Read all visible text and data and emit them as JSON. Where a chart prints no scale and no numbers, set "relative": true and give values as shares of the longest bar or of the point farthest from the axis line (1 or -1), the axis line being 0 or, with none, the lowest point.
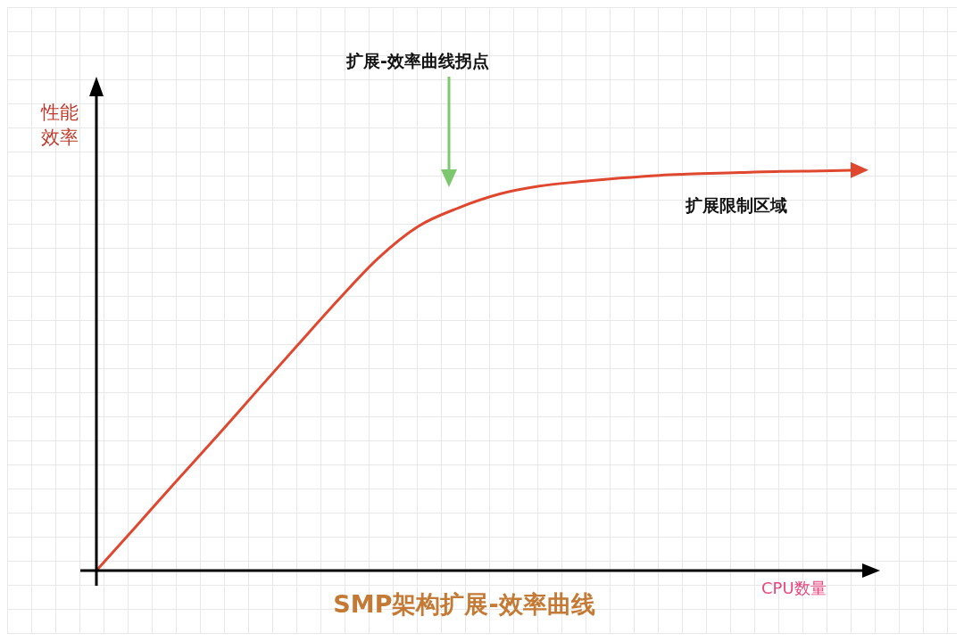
{
  "chart_data": {
    "type": "line",
    "relative": true,
    "title": "SMP架构扩展-效率曲线",
    "xlabel": "CPU数量",
    "ylabel": "性能效率",
    "annotations": [
      "扩展-效率曲线拐点",
      "扩展限制区域"
    ],
    "categories": [
      null,
      null,
      null,
      null,
      null,
      null,
      null,
      null,
      null,
      null,
      null,
      null,
      null,
      null,
      null,
      null,
      null,
      null,
      null,
      null
    ],
    "series": [
      {
        "color": "#e0472f",
        "values": [
          0,
          0.112,
          0.225,
          0.336,
          0.45,
          0.563,
          0.675,
          0.78,
          0.86,
          0.906,
          0.94,
          0.96,
          0.971,
          0.98,
          0.987,
          0.991,
          0.994,
          0.997,
          0.998,
          1
        ]
      }
    ]
  }
}
